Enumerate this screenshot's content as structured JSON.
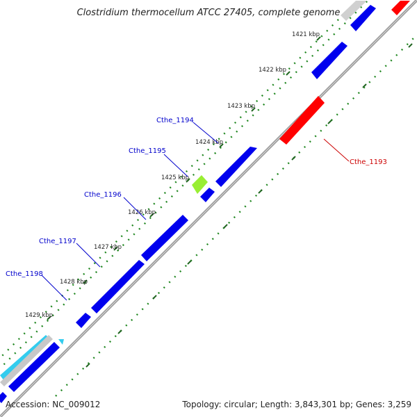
{
  "header": {
    "title": "Clostridium thermocellum ATCC 27405, complete genome"
  },
  "footer": {
    "accession": "Accession: NC_009012",
    "summary": "Topology: circular; Length: 3,843,301 bp; Genes: 3,259"
  },
  "ticks": {
    "t1421": "1421 kbp",
    "t1422": "1422 kbp",
    "t1423": "1423 kbp",
    "t1424": "1424 kbp",
    "t1425": "1425 kbp",
    "t1426": "1426 kbp",
    "t1427": "1427 kbp",
    "t1428": "1428 kbp",
    "t1429": "1429 kbp"
  },
  "genes": {
    "g1193": "Cthe_1193",
    "g1194": "Cthe_1194",
    "g1195": "Cthe_1195",
    "g1196": "Cthe_1196",
    "g1197": "Cthe_1197",
    "g1198": "Cthe_1198"
  },
  "colors": {
    "forward_cds": "#0000ff",
    "reverse_cds": "#ff0000",
    "highlight_cds": "#99ee33",
    "other_feature": "#33ccee",
    "tick_marks": "#228822",
    "backbone": "#888888",
    "forward_label": "#0000cc",
    "reverse_label": "#cc0000"
  }
}
